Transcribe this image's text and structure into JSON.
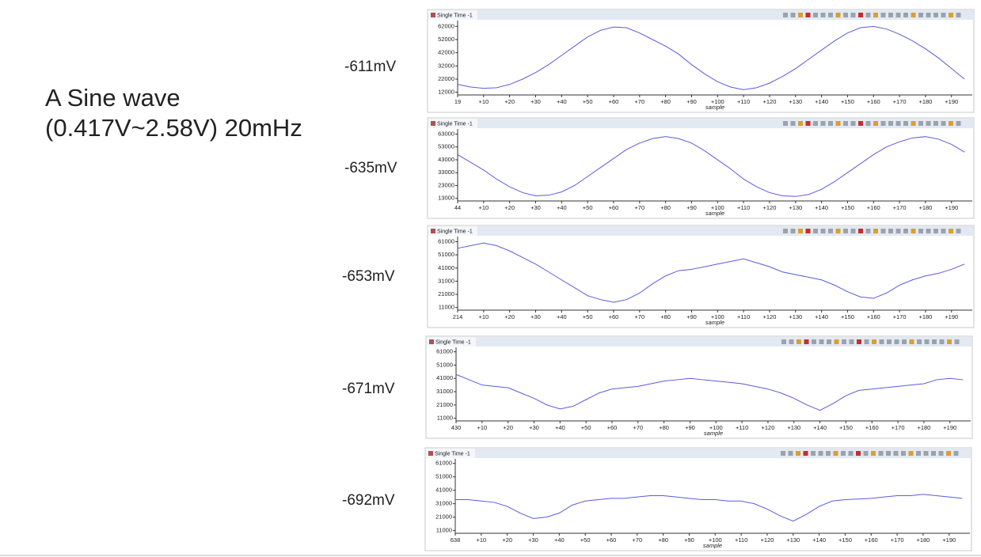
{
  "heading": [
    "A Sine wave",
    "(0.417V~2.58V) 20mHz"
  ],
  "chart_data": [
    {
      "type": "line",
      "title": "Single Time -1",
      "annotation": "-611mV",
      "xlabel": "sample",
      "x": [
        0,
        5,
        10,
        15,
        20,
        25,
        30,
        35,
        40,
        45,
        50,
        55,
        60,
        65,
        70,
        75,
        80,
        85,
        90,
        95,
        100,
        105,
        110,
        115,
        120,
        125,
        130,
        135,
        140,
        145,
        150,
        155,
        160,
        165,
        170,
        175,
        180,
        185,
        190,
        195
      ],
      "series": [
        {
          "color": "#5b5be0",
          "values": [
            18000,
            16000,
            15000,
            15500,
            18000,
            22000,
            27000,
            33000,
            40000,
            47000,
            54000,
            59000,
            61500,
            61000,
            57000,
            52000,
            47000,
            41000,
            33000,
            26000,
            20000,
            16000,
            14000,
            15500,
            19000,
            24000,
            30000,
            37000,
            44000,
            51000,
            57000,
            61000,
            62000,
            60000,
            56000,
            51000,
            45000,
            38000,
            30000,
            22000
          ]
        }
      ],
      "xlim": [
        0,
        198
      ],
      "ylim": [
        10000,
        64000
      ],
      "yticks": [
        12000,
        22000,
        32000,
        42000,
        52000,
        62000
      ],
      "xticks": [
        {
          "value": 0,
          "label": "19"
        },
        {
          "value": 10,
          "label": "+10"
        },
        {
          "value": 20,
          "label": "+20"
        },
        {
          "value": 30,
          "label": "+30"
        },
        {
          "value": 40,
          "label": "+40"
        },
        {
          "value": 50,
          "label": "+50"
        },
        {
          "value": 60,
          "label": "+60"
        },
        {
          "value": 70,
          "label": "+70"
        },
        {
          "value": 80,
          "label": "+80"
        },
        {
          "value": 90,
          "label": "+90"
        },
        {
          "value": 100,
          "label": "+100"
        },
        {
          "value": 110,
          "label": "+110"
        },
        {
          "value": 120,
          "label": "+120"
        },
        {
          "value": 130,
          "label": "+130"
        },
        {
          "value": 140,
          "label": "+140"
        },
        {
          "value": 150,
          "label": "+150"
        },
        {
          "value": 160,
          "label": "+160"
        },
        {
          "value": 170,
          "label": "+170"
        },
        {
          "value": 180,
          "label": "+180"
        },
        {
          "value": 190,
          "label": "+190"
        }
      ]
    },
    {
      "type": "line",
      "title": "Single Time -1",
      "annotation": "-635mV",
      "xlabel": "sample",
      "x": [
        0,
        5,
        10,
        15,
        20,
        25,
        30,
        35,
        40,
        45,
        50,
        55,
        60,
        65,
        70,
        75,
        80,
        85,
        90,
        95,
        100,
        105,
        110,
        115,
        120,
        125,
        130,
        135,
        140,
        145,
        150,
        155,
        160,
        165,
        170,
        175,
        180,
        185,
        190,
        195
      ],
      "series": [
        {
          "color": "#5b5be0",
          "values": [
            47000,
            41000,
            35000,
            28000,
            22000,
            17500,
            15000,
            15500,
            18000,
            23000,
            30000,
            37000,
            44000,
            51000,
            56000,
            59500,
            61000,
            59500,
            56000,
            50000,
            43000,
            36000,
            28000,
            22000,
            17500,
            15000,
            14500,
            16000,
            20000,
            26000,
            33000,
            40000,
            47000,
            53000,
            57000,
            60000,
            61000,
            59000,
            55000,
            49000
          ]
        }
      ],
      "xlim": [
        0,
        198
      ],
      "ylim": [
        11000,
        64500
      ],
      "yticks": [
        13000,
        23000,
        33000,
        43000,
        53000,
        63000
      ],
      "xticks": [
        {
          "value": 0,
          "label": "44"
        },
        {
          "value": 10,
          "label": "+10"
        },
        {
          "value": 20,
          "label": "+20"
        },
        {
          "value": 30,
          "label": "+30"
        },
        {
          "value": 40,
          "label": "+40"
        },
        {
          "value": 50,
          "label": "+50"
        },
        {
          "value": 60,
          "label": "+60"
        },
        {
          "value": 70,
          "label": "+70"
        },
        {
          "value": 80,
          "label": "+80"
        },
        {
          "value": 90,
          "label": "+90"
        },
        {
          "value": 100,
          "label": "+100"
        },
        {
          "value": 110,
          "label": "+110"
        },
        {
          "value": 120,
          "label": "+120"
        },
        {
          "value": 130,
          "label": "+130"
        },
        {
          "value": 140,
          "label": "+140"
        },
        {
          "value": 150,
          "label": "+150"
        },
        {
          "value": 160,
          "label": "+160"
        },
        {
          "value": 170,
          "label": "+170"
        },
        {
          "value": 180,
          "label": "+180"
        },
        {
          "value": 190,
          "label": "+190"
        }
      ]
    },
    {
      "type": "line",
      "title": "Single Time -1",
      "annotation": "-653mV",
      "xlabel": "sample",
      "x": [
        0,
        5,
        10,
        15,
        20,
        25,
        30,
        35,
        40,
        45,
        50,
        55,
        60,
        65,
        70,
        75,
        80,
        85,
        90,
        95,
        100,
        105,
        110,
        115,
        120,
        125,
        130,
        135,
        140,
        145,
        150,
        155,
        160,
        165,
        170,
        175,
        180,
        185,
        190,
        195
      ],
      "series": [
        {
          "color": "#5b5be0",
          "values": [
            56000,
            58000,
            60000,
            58000,
            54000,
            49000,
            44000,
            38000,
            32000,
            26000,
            20000,
            17000,
            15000,
            17000,
            22000,
            29000,
            35000,
            39000,
            40000,
            42000,
            44000,
            46000,
            48000,
            45000,
            42000,
            38000,
            36000,
            34000,
            32000,
            28000,
            23000,
            19000,
            18000,
            22000,
            28000,
            32000,
            35000,
            37000,
            40000,
            44000
          ]
        }
      ],
      "xlim": [
        0,
        198
      ],
      "ylim": [
        9000,
        62500
      ],
      "yticks": [
        11000,
        21000,
        31000,
        41000,
        51000,
        61000
      ],
      "xticks": [
        {
          "value": 0,
          "label": "214"
        },
        {
          "value": 10,
          "label": "+10"
        },
        {
          "value": 20,
          "label": "+20"
        },
        {
          "value": 30,
          "label": "+30"
        },
        {
          "value": 40,
          "label": "+40"
        },
        {
          "value": 50,
          "label": "+50"
        },
        {
          "value": 60,
          "label": "+60"
        },
        {
          "value": 70,
          "label": "+70"
        },
        {
          "value": 80,
          "label": "+80"
        },
        {
          "value": 90,
          "label": "+90"
        },
        {
          "value": 100,
          "label": "+100"
        },
        {
          "value": 110,
          "label": "+110"
        },
        {
          "value": 120,
          "label": "+120"
        },
        {
          "value": 130,
          "label": "+130"
        },
        {
          "value": 140,
          "label": "+140"
        },
        {
          "value": 150,
          "label": "+150"
        },
        {
          "value": 160,
          "label": "+160"
        },
        {
          "value": 170,
          "label": "+170"
        },
        {
          "value": 180,
          "label": "+180"
        },
        {
          "value": 190,
          "label": "+190"
        }
      ]
    },
    {
      "type": "line",
      "title": "Single Time -1",
      "annotation": "-671mV",
      "xlabel": "sample",
      "x": [
        0,
        5,
        10,
        15,
        20,
        25,
        30,
        35,
        40,
        45,
        50,
        55,
        60,
        65,
        70,
        75,
        80,
        85,
        90,
        95,
        100,
        105,
        110,
        115,
        120,
        125,
        130,
        135,
        140,
        145,
        150,
        155,
        160,
        165,
        170,
        175,
        180,
        185,
        190,
        195
      ],
      "series": [
        {
          "color": "#5b5be0",
          "values": [
            44000,
            40000,
            36000,
            35000,
            34000,
            30000,
            26000,
            21000,
            18000,
            20000,
            25000,
            30000,
            33000,
            34000,
            35000,
            37000,
            39000,
            40000,
            41000,
            40000,
            39000,
            38000,
            37000,
            35000,
            33000,
            30000,
            26000,
            21000,
            17000,
            22000,
            28000,
            32000,
            33000,
            34000,
            35000,
            36000,
            37000,
            40000,
            41000,
            40000
          ]
        }
      ],
      "xlim": [
        0,
        198
      ],
      "ylim": [
        9000,
        62000
      ],
      "yticks": [
        11000,
        21000,
        31000,
        41000,
        51000,
        61000
      ],
      "xticks": [
        {
          "value": 0,
          "label": "430"
        },
        {
          "value": 10,
          "label": "+10"
        },
        {
          "value": 20,
          "label": "+20"
        },
        {
          "value": 30,
          "label": "+30"
        },
        {
          "value": 40,
          "label": "+40"
        },
        {
          "value": 50,
          "label": "+50"
        },
        {
          "value": 60,
          "label": "+60"
        },
        {
          "value": 70,
          "label": "+70"
        },
        {
          "value": 80,
          "label": "+80"
        },
        {
          "value": 90,
          "label": "+90"
        },
        {
          "value": 100,
          "label": "+100"
        },
        {
          "value": 110,
          "label": "+110"
        },
        {
          "value": 120,
          "label": "+120"
        },
        {
          "value": 130,
          "label": "+130"
        },
        {
          "value": 140,
          "label": "+140"
        },
        {
          "value": 150,
          "label": "+150"
        },
        {
          "value": 160,
          "label": "+160"
        },
        {
          "value": 170,
          "label": "+170"
        },
        {
          "value": 180,
          "label": "+180"
        },
        {
          "value": 190,
          "label": "+190"
        }
      ]
    },
    {
      "type": "line",
      "title": "Single Time -1",
      "annotation": "-692mV",
      "xlabel": "sample",
      "x": [
        0,
        5,
        10,
        15,
        20,
        25,
        30,
        35,
        40,
        45,
        50,
        55,
        60,
        65,
        70,
        75,
        80,
        85,
        90,
        95,
        100,
        105,
        110,
        115,
        120,
        125,
        130,
        135,
        140,
        145,
        150,
        155,
        160,
        165,
        170,
        175,
        180,
        185,
        190,
        195
      ],
      "series": [
        {
          "color": "#5b5be0",
          "values": [
            34000,
            34000,
            33000,
            32000,
            29000,
            24000,
            20000,
            21000,
            24000,
            30000,
            33000,
            34000,
            35000,
            35000,
            36000,
            37000,
            37000,
            36000,
            35000,
            34000,
            34000,
            33000,
            33000,
            31000,
            27000,
            22000,
            18000,
            23000,
            29000,
            33000,
            34000,
            34500,
            35000,
            36000,
            37000,
            37000,
            38000,
            37000,
            36000,
            35000
          ]
        }
      ],
      "xlim": [
        0,
        198
      ],
      "ylim": [
        9000,
        62000
      ],
      "yticks": [
        11000,
        21000,
        31000,
        41000,
        51000,
        61000
      ],
      "xticks": [
        {
          "value": 0,
          "label": "638"
        },
        {
          "value": 10,
          "label": "+10"
        },
        {
          "value": 20,
          "label": "+20"
        },
        {
          "value": 30,
          "label": "+30"
        },
        {
          "value": 40,
          "label": "+40"
        },
        {
          "value": 50,
          "label": "+50"
        },
        {
          "value": 60,
          "label": "+60"
        },
        {
          "value": 70,
          "label": "+70"
        },
        {
          "value": 80,
          "label": "+80"
        },
        {
          "value": 90,
          "label": "+90"
        },
        {
          "value": 100,
          "label": "+100"
        },
        {
          "value": 110,
          "label": "+110"
        },
        {
          "value": 120,
          "label": "+120"
        },
        {
          "value": 130,
          "label": "+130"
        },
        {
          "value": 140,
          "label": "+140"
        },
        {
          "value": 150,
          "label": "+150"
        },
        {
          "value": 160,
          "label": "+160"
        },
        {
          "value": 170,
          "label": "+170"
        },
        {
          "value": 180,
          "label": "+180"
        },
        {
          "value": 190,
          "label": "+190"
        }
      ]
    }
  ]
}
